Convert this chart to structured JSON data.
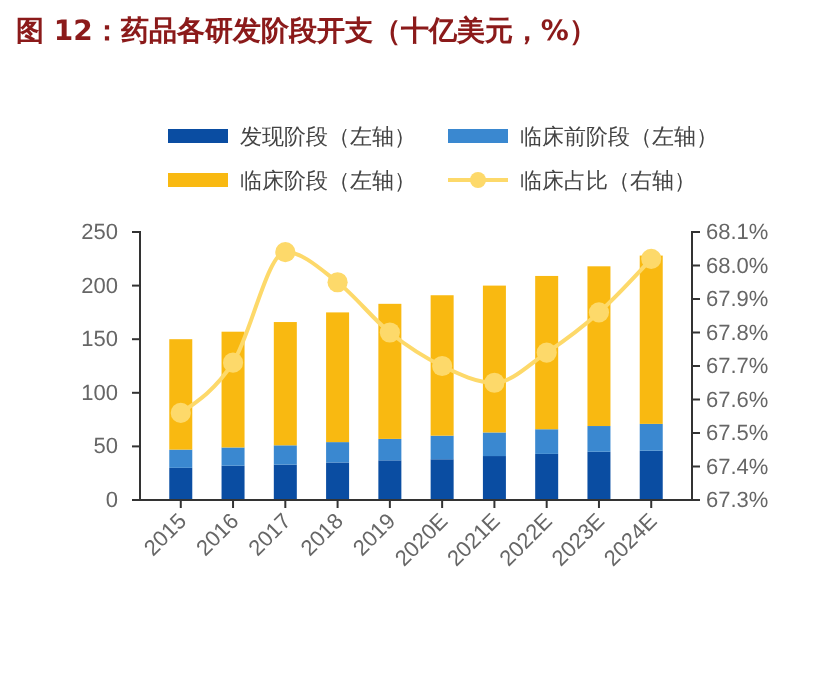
{
  "chart_data": {
    "type": "bar",
    "title": "图 12：药品各研发阶段开支（十亿美元，%）",
    "categories": [
      "2015",
      "2016",
      "2017",
      "2018",
      "2019",
      "2020E",
      "2021E",
      "2022E",
      "2023E",
      "2024E"
    ],
    "stacked": true,
    "series": [
      {
        "name": "发现阶段（左轴）",
        "color": "#0a4da2",
        "values": [
          30,
          32,
          33,
          35,
          37,
          38,
          41,
          43,
          45,
          46
        ]
      },
      {
        "name": "临床前阶段（左轴）",
        "color": "#3a88d0",
        "values": [
          17,
          17,
          18,
          19,
          20,
          22,
          22,
          23,
          24,
          25
        ]
      },
      {
        "name": "临床阶段（左轴）",
        "color": "#f9b911",
        "values": [
          103,
          108,
          115,
          121,
          126,
          131,
          137,
          143,
          149,
          157
        ]
      },
      {
        "name": "临床占比（右轴）",
        "color": "#fdd96a",
        "type": "line",
        "axis": "y2",
        "marker": "circle",
        "values": [
          67.56,
          67.71,
          68.04,
          67.95,
          67.8,
          67.7,
          67.65,
          67.74,
          67.86,
          68.02
        ]
      }
    ],
    "ylim": [
      0,
      250
    ],
    "yticks": [
      0,
      50,
      100,
      150,
      200,
      250
    ],
    "y2lim": [
      67.3,
      68.1
    ],
    "y2ticks": [
      {
        "value": 67.3,
        "label": "67.3%"
      },
      {
        "value": 67.4,
        "label": "67.4%"
      },
      {
        "value": 67.5,
        "label": "67.5%"
      },
      {
        "value": 67.6,
        "label": "67.6%"
      },
      {
        "value": 67.7,
        "label": "67.7%"
      },
      {
        "value": 67.8,
        "label": "67.8%"
      },
      {
        "value": 67.9,
        "label": "67.9%"
      },
      {
        "value": 68.0,
        "label": "68.0%"
      },
      {
        "value": 68.1,
        "label": "68.1%"
      }
    ],
    "legend": "top",
    "grid": false
  }
}
